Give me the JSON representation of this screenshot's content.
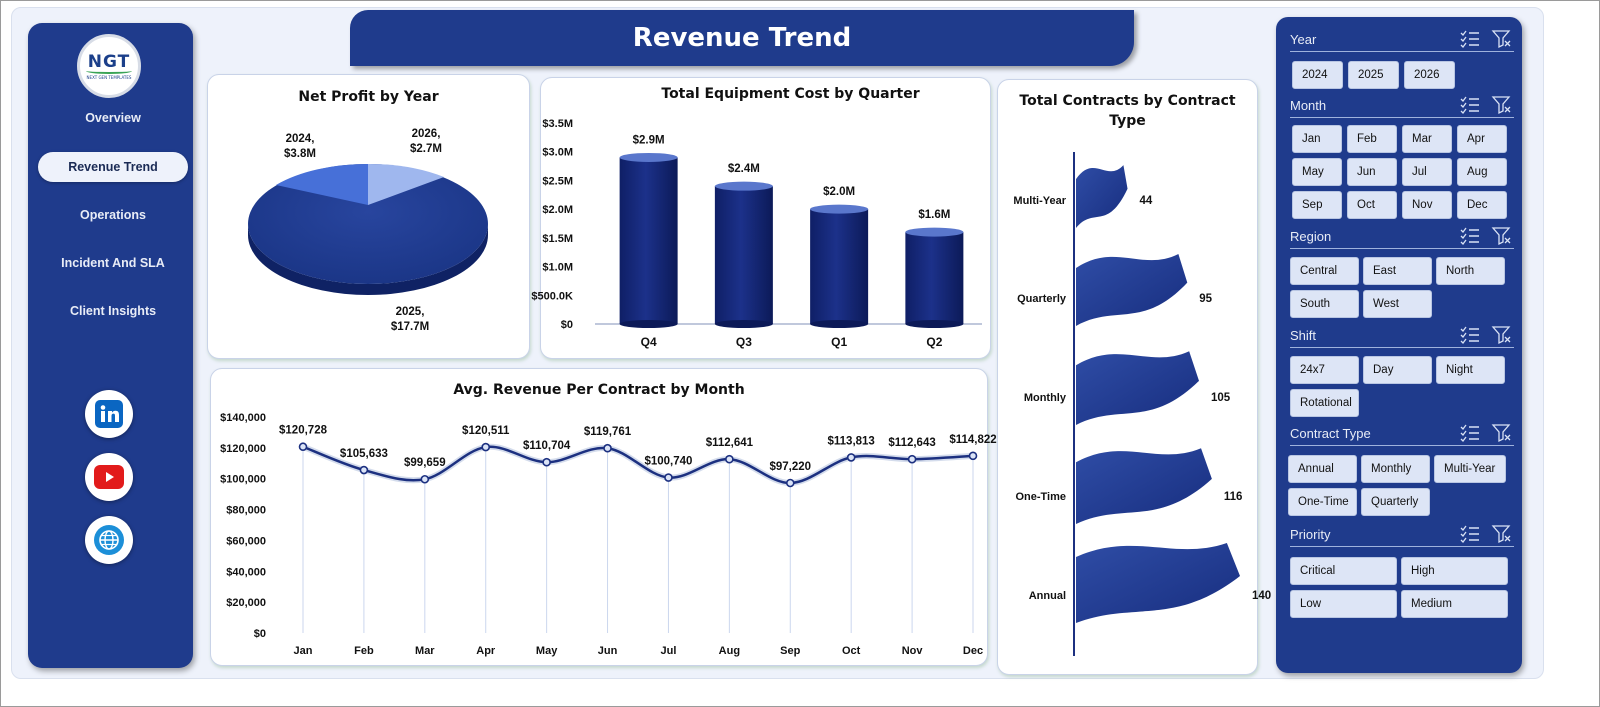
{
  "header": {
    "title": "Revenue Trend"
  },
  "logo": {
    "text": "NGT",
    "subtext": "NEXT GEN TEMPLATES"
  },
  "sidebar": {
    "items": [
      {
        "label": "Overview",
        "active": false
      },
      {
        "label": "Revenue Trend",
        "active": true
      },
      {
        "label": "Operations",
        "active": false
      },
      {
        "label": "Incident And SLA",
        "active": false
      },
      {
        "label": "Client Insights",
        "active": false
      }
    ],
    "social": [
      "linkedin-icon",
      "youtube-icon",
      "globe-icon"
    ]
  },
  "colors": {
    "navy": "#1f3b8c",
    "bar": "#17297a",
    "accent_light": "#dde5f6"
  },
  "charts": {
    "pie": {
      "title": "Net Profit by Year",
      "labels": [
        {
          "line1": "2024,",
          "line2": "$3.8M"
        },
        {
          "line1": "2026,",
          "line2": "$2.7M"
        },
        {
          "line1": "2025,",
          "line2": "$17.7M"
        }
      ]
    },
    "bar": {
      "title": "Total Equipment Cost by Quarter",
      "ticks": [
        "$3.5M",
        "$3.0M",
        "$2.5M",
        "$2.0M",
        "$1.5M",
        "$1.0M",
        "$500.0K",
        "$0"
      ],
      "data_labels": [
        "$2.9M",
        "$2.4M",
        "$2.0M",
        "$1.6M"
      ],
      "categories": [
        "Q4",
        "Q3",
        "Q1",
        "Q2"
      ]
    },
    "line": {
      "title": "Avg. Revenue Per Contract by Month",
      "ticks": [
        "$140,000",
        "$120,000",
        "$100,000",
        "$80,000",
        "$60,000",
        "$40,000",
        "$20,000",
        "$0"
      ],
      "months": [
        "Jan",
        "Feb",
        "Mar",
        "Apr",
        "May",
        "Jun",
        "Jul",
        "Aug",
        "Sep",
        "Oct",
        "Nov",
        "Dec"
      ],
      "data_labels": [
        "$120,728",
        "$105,633",
        "$99,659",
        "$120,511",
        "$110,704",
        "$119,761",
        "$100,740",
        "$112,641",
        "$97,220",
        "$113,813",
        "$112,643",
        "$114,822"
      ]
    },
    "contracts": {
      "title_line1": "Total Contracts  by Contract",
      "title_line2": "Type",
      "categories": [
        "Multi-Year",
        "Quarterly",
        "Monthly",
        "One-Time",
        "Annual"
      ],
      "data_labels": [
        "44",
        "95",
        "105",
        "116",
        "140"
      ]
    }
  },
  "chart_data": [
    {
      "type": "pie",
      "title": "Net Profit by Year",
      "categories": [
        "2024",
        "2025",
        "2026"
      ],
      "values": [
        3.8,
        17.7,
        2.7
      ],
      "unit": "$M"
    },
    {
      "type": "bar",
      "title": "Total Equipment Cost by Quarter",
      "categories": [
        "Q4",
        "Q3",
        "Q1",
        "Q2"
      ],
      "values": [
        2.9,
        2.4,
        2.0,
        1.6
      ],
      "unit": "$M",
      "ylim": [
        0,
        3.5
      ],
      "grid": false
    },
    {
      "type": "line",
      "title": "Avg. Revenue Per Contract by Month",
      "categories": [
        "Jan",
        "Feb",
        "Mar",
        "Apr",
        "May",
        "Jun",
        "Jul",
        "Aug",
        "Sep",
        "Oct",
        "Nov",
        "Dec"
      ],
      "values": [
        120728,
        105633,
        99659,
        120511,
        110704,
        119761,
        100740,
        112641,
        97220,
        113813,
        112643,
        114822
      ],
      "ylim": [
        0,
        140000
      ],
      "grid": false
    },
    {
      "type": "bar",
      "orientation": "horizontal",
      "title": "Total Contracts  by Contract Type",
      "categories": [
        "Multi-Year",
        "Quarterly",
        "Monthly",
        "One-Time",
        "Annual"
      ],
      "values": [
        44,
        95,
        105,
        116,
        140
      ]
    }
  ],
  "filters": {
    "groups": [
      {
        "title": "Year",
        "items": [
          "2024",
          "2025",
          "2026"
        ]
      },
      {
        "title": "Month",
        "items": [
          "Jan",
          "Feb",
          "Mar",
          "Apr",
          "May",
          "Jun",
          "Jul",
          "Aug",
          "Sep",
          "Oct",
          "Nov",
          "Dec"
        ]
      },
      {
        "title": "Region",
        "items": [
          "Central",
          "East",
          "North",
          "South",
          "West"
        ]
      },
      {
        "title": "Shift",
        "items": [
          "24x7",
          "Day",
          "Night",
          "Rotational"
        ]
      },
      {
        "title": "Contract Type",
        "items": [
          "Annual",
          "Monthly",
          "Multi-Year",
          "One-Time",
          "Quarterly"
        ]
      },
      {
        "title": "Priority",
        "items": [
          "Critical",
          "High",
          "Low",
          "Medium"
        ]
      }
    ]
  }
}
